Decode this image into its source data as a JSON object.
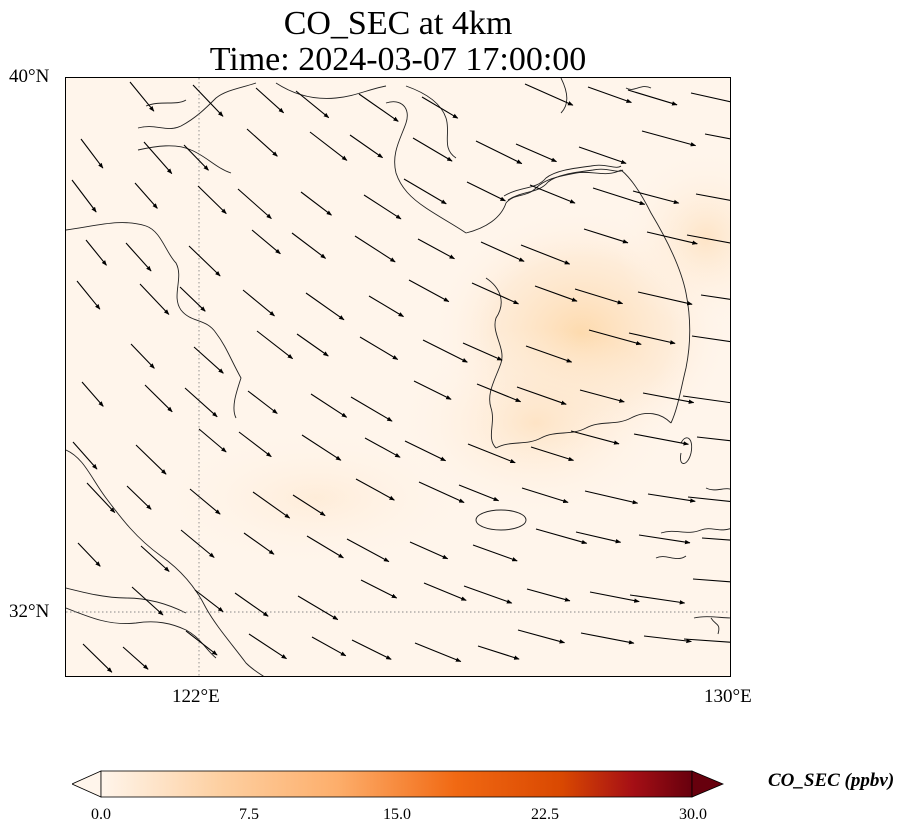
{
  "title": {
    "line1": "CO_SEC at 4km",
    "line2": "Time: 2024-03-07 17:00:00"
  },
  "axes": {
    "lat_ticks": [
      "40°N",
      "32°N"
    ],
    "lon_ticks": [
      "122°E",
      "130°E"
    ],
    "lat_range": [
      31,
      40
    ],
    "lon_range": [
      120,
      130
    ]
  },
  "map": {
    "field_color_low": "#fff5eb",
    "field_color_peak": "#fdd49e",
    "coast_color": "#222222",
    "gridline_color": "#888888",
    "arrow_color": "#000000"
  },
  "colorbar": {
    "label": "CO_SEC (ppbv)",
    "ticks": [
      "0.0",
      "7.5",
      "15.0",
      "22.5",
      "30.0"
    ],
    "range": [
      0,
      30
    ],
    "colors": [
      "#fff5eb",
      "#fdd0a2",
      "#fdae6b",
      "#f16913",
      "#d94801",
      "#a50f15",
      "#67000d"
    ],
    "extend": "both"
  }
}
